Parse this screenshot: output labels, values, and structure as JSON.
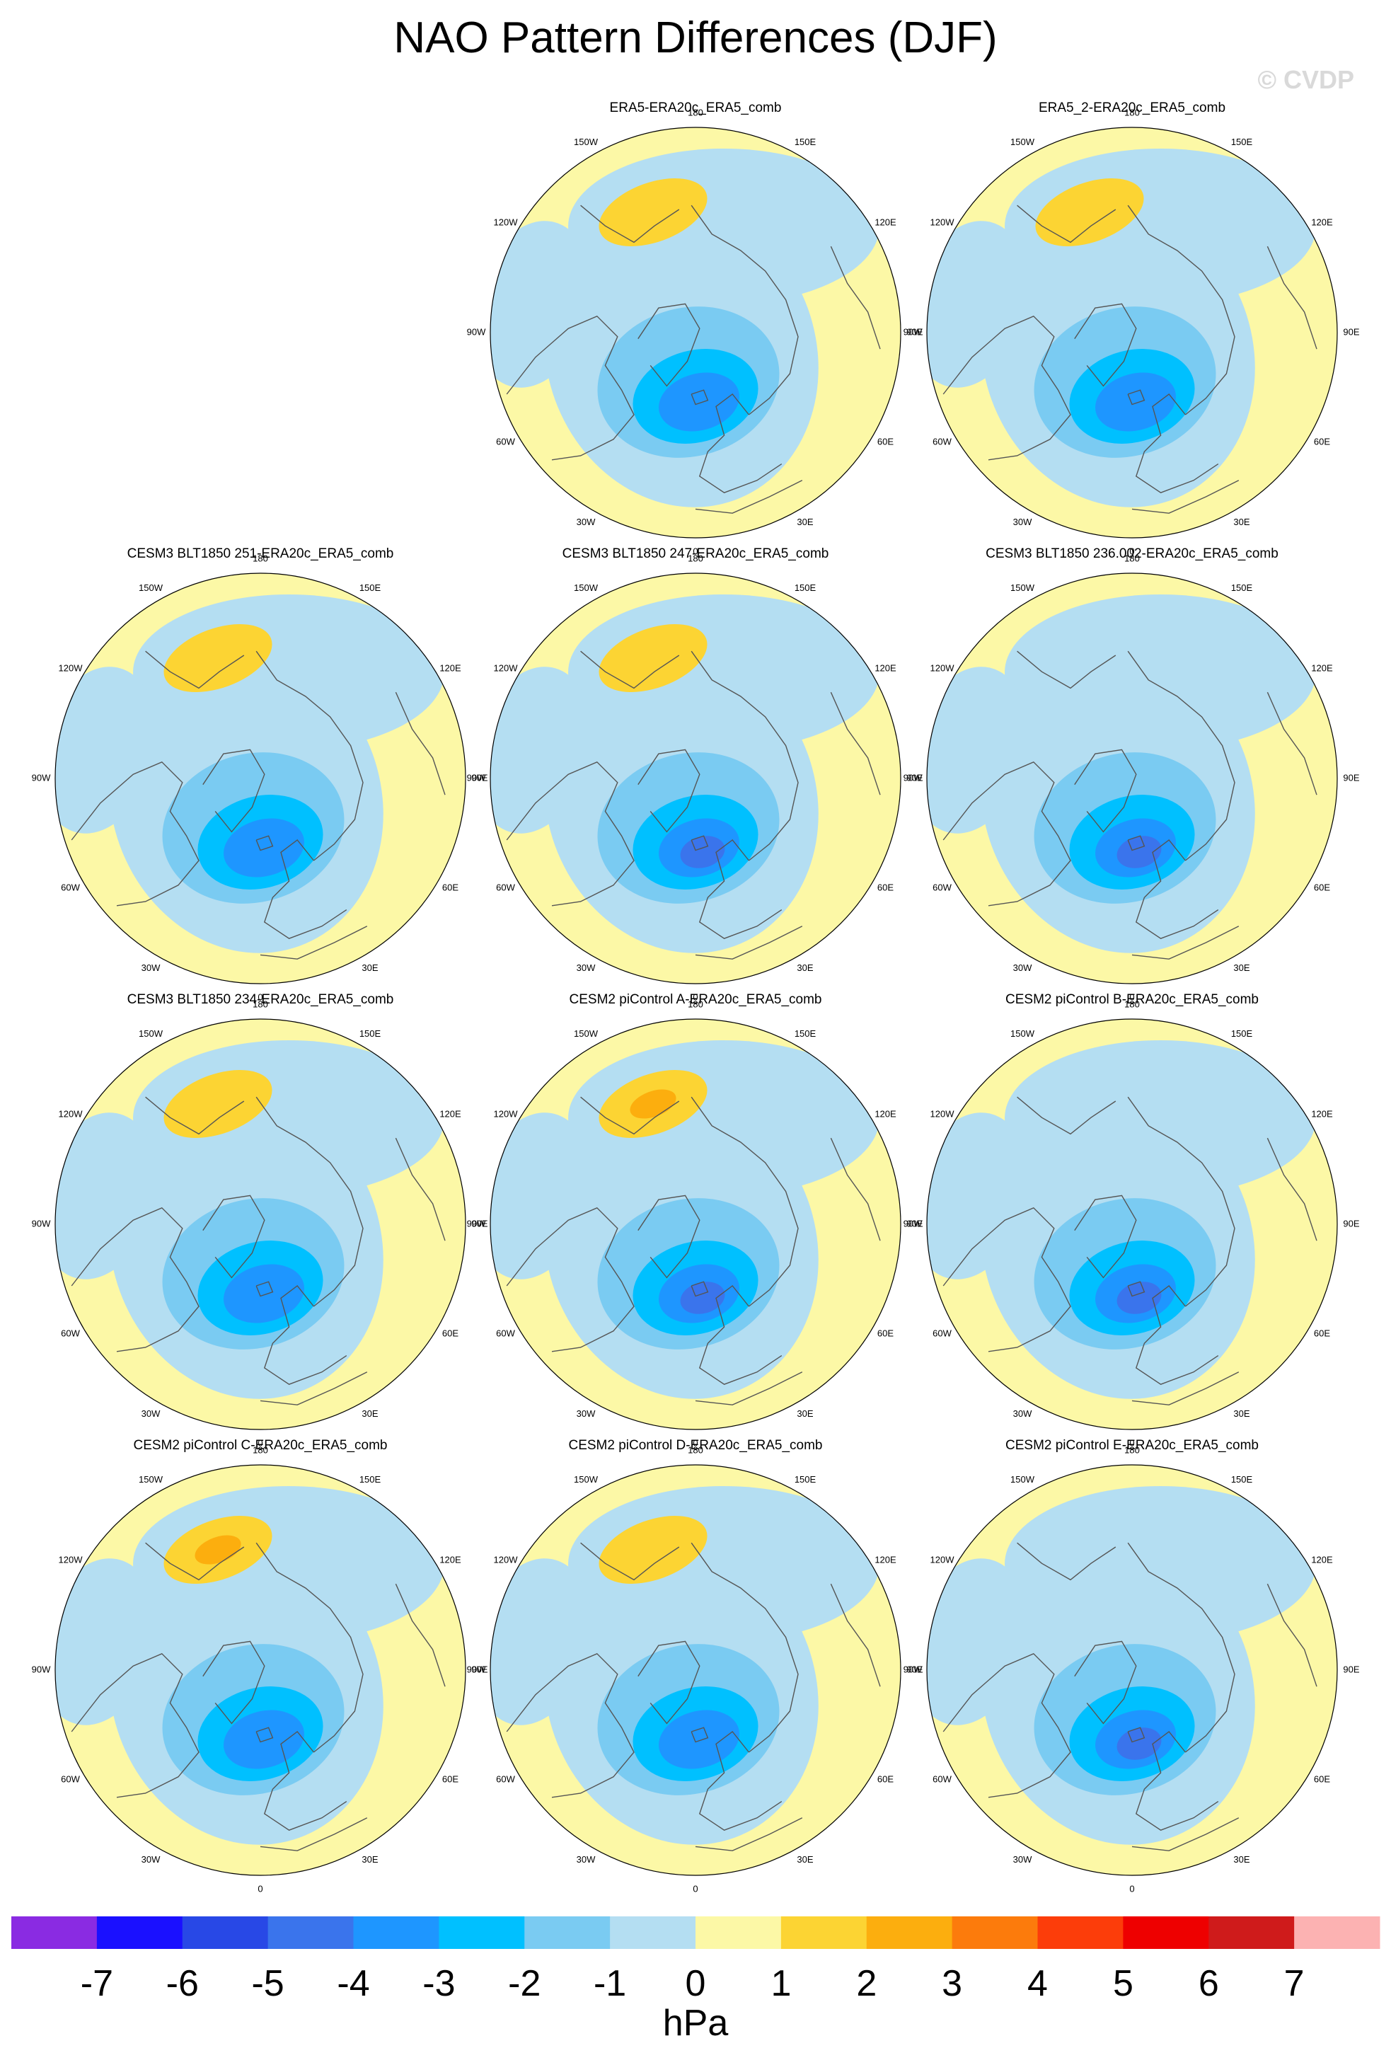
{
  "figure": {
    "title": "NAO Pattern Differences (DJF)",
    "watermark": "© CVDP",
    "unit": "hPa"
  },
  "colors": {
    "levels": [
      -7,
      -6,
      -5,
      -4,
      -3,
      -2,
      -1,
      0,
      1,
      2,
      3,
      4,
      5,
      6,
      7
    ],
    "bins": [
      "#8a2be2",
      "#1a10ff",
      "#2848e6",
      "#3a74ec",
      "#1e96ff",
      "#00c0ff",
      "#7acbf2",
      "#b4def2",
      "#fcf8a6",
      "#fcd433",
      "#fcae0e",
      "#fc7b0c",
      "#fc3d0a",
      "#ee0000",
      "#cf1b1b",
      "#fcb2b2"
    ],
    "land_outline": "#555555"
  },
  "lon_labels": [
    "180",
    "150E",
    "120E",
    "90E",
    "60E",
    "30E",
    "0",
    "30W",
    "60W",
    "90W",
    "120W",
    "150W"
  ],
  "chart_data": [
    {
      "type": "polar-contour-map",
      "title": "ERA5-ERA20c_ERA5_comb",
      "projection": "north-polar-stereographic",
      "variable": "sea level pressure difference",
      "units": "hPa",
      "center_min": -3.5,
      "pacific_max": 1.5
    },
    {
      "type": "polar-contour-map",
      "title": "ERA5_2-ERA20c_ERA5_comb",
      "projection": "north-polar-stereographic",
      "variable": "sea level pressure difference",
      "units": "hPa",
      "center_min": -3.5,
      "pacific_max": 1.5
    },
    {
      "type": "polar-contour-map",
      "title": "CESM3 BLT1850 251-ERA20c_ERA5_comb",
      "projection": "north-polar-stereographic",
      "variable": "sea level pressure difference",
      "units": "hPa",
      "center_min": -3.5,
      "pacific_max": 1.5
    },
    {
      "type": "polar-contour-map",
      "title": "CESM3 BLT1850 247-ERA20c_ERA5_comb",
      "projection": "north-polar-stereographic",
      "variable": "sea level pressure difference",
      "units": "hPa",
      "center_min": -4.5,
      "pacific_max": 1.5
    },
    {
      "type": "polar-contour-map",
      "title": "CESM3 BLT1850 236.002-ERA20c_ERA5_comb",
      "projection": "north-polar-stereographic",
      "variable": "sea level pressure difference",
      "units": "hPa",
      "center_min": -4.5,
      "pacific_max": 0.5
    },
    {
      "type": "polar-contour-map",
      "title": "CESM3 BLT1850 234-ERA20c_ERA5_comb",
      "projection": "north-polar-stereographic",
      "variable": "sea level pressure difference",
      "units": "hPa",
      "center_min": -3.5,
      "pacific_max": 1.5
    },
    {
      "type": "polar-contour-map",
      "title": "CESM2 piControl A-ERA20c_ERA5_comb",
      "projection": "north-polar-stereographic",
      "variable": "sea level pressure difference",
      "units": "hPa",
      "center_min": -4.5,
      "pacific_max": 2.5
    },
    {
      "type": "polar-contour-map",
      "title": "CESM2 piControl B-ERA20c_ERA5_comb",
      "projection": "north-polar-stereographic",
      "variable": "sea level pressure difference",
      "units": "hPa",
      "center_min": -4.5,
      "pacific_max": 0.5
    },
    {
      "type": "polar-contour-map",
      "title": "CESM2 piControl C-ERA20c_ERA5_comb",
      "projection": "north-polar-stereographic",
      "variable": "sea level pressure difference",
      "units": "hPa",
      "center_min": -3.5,
      "pacific_max": 2.5
    },
    {
      "type": "polar-contour-map",
      "title": "CESM2 piControl D-ERA20c_ERA5_comb",
      "projection": "north-polar-stereographic",
      "variable": "sea level pressure difference",
      "units": "hPa",
      "center_min": -3.5,
      "pacific_max": 1.5
    },
    {
      "type": "polar-contour-map",
      "title": "CESM2 piControl E-ERA20c_ERA5_comb",
      "projection": "north-polar-stereographic",
      "variable": "sea level pressure difference",
      "units": "hPa",
      "center_min": -4.5,
      "pacific_max": 0.5
    }
  ]
}
